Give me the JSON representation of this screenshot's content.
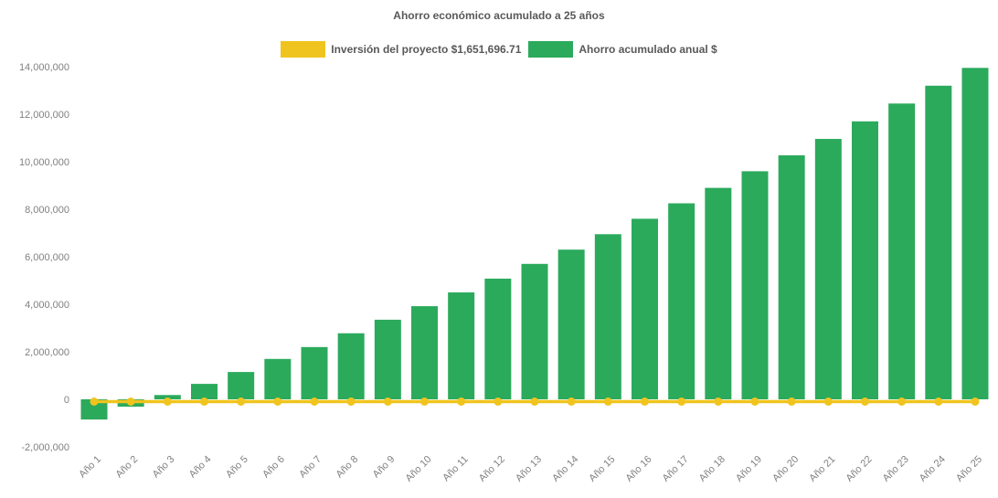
{
  "page": {
    "background": "#ffffff",
    "text_muted": "#808080",
    "text_strong": "#595959"
  },
  "chart_data": {
    "type": "bar",
    "title": "Ahorro económico acumulado a 25 años",
    "categories": [
      "Año 1",
      "Año 2",
      "Año 3",
      "Año 4",
      "Año 5",
      "Año 6",
      "Año 7",
      "Año 8",
      "Año 9",
      "Año 10",
      "Año 11",
      "Año 12",
      "Año 13",
      "Año 14",
      "Año 15",
      "Año 16",
      "Año 17",
      "Año 18",
      "Año 19",
      "Año 20",
      "Año 21",
      "Año 22",
      "Año 23",
      "Año 24",
      "Año 25"
    ],
    "series": [
      {
        "name": "Inversión del proyecto $1,651,696.71",
        "type": "line",
        "color": "#F0C41E",
        "marker": "circle",
        "investment_amount": 1651696.71,
        "values": [
          0,
          0,
          0,
          0,
          0,
          0,
          0,
          0,
          0,
          0,
          0,
          0,
          0,
          0,
          0,
          0,
          0,
          0,
          0,
          0,
          0,
          0,
          0,
          0,
          0
        ]
      },
      {
        "name": "Ahorro acumulado anual $",
        "type": "bar",
        "color": "#2BAA5C",
        "values": [
          -850000,
          -310000,
          180000,
          650000,
          1150000,
          1700000,
          2200000,
          2780000,
          3350000,
          3920000,
          4500000,
          5080000,
          5700000,
          6300000,
          6950000,
          7600000,
          8250000,
          8900000,
          9600000,
          10270000,
          10960000,
          11700000,
          12450000,
          13200000,
          13950000
        ]
      }
    ],
    "xlabel": "",
    "ylabel": "",
    "ylim": [
      -2000000,
      14000000
    ],
    "ytick_step": 2000000,
    "ytick_labels": [
      "-2,000,000",
      "0",
      "2,000,000",
      "4,000,000",
      "6,000,000",
      "8,000,000",
      "10,000,000",
      "12,000,000",
      "14,000,000"
    ],
    "grid": false,
    "legend_position": "top-center",
    "x_label_rotation": -45
  }
}
